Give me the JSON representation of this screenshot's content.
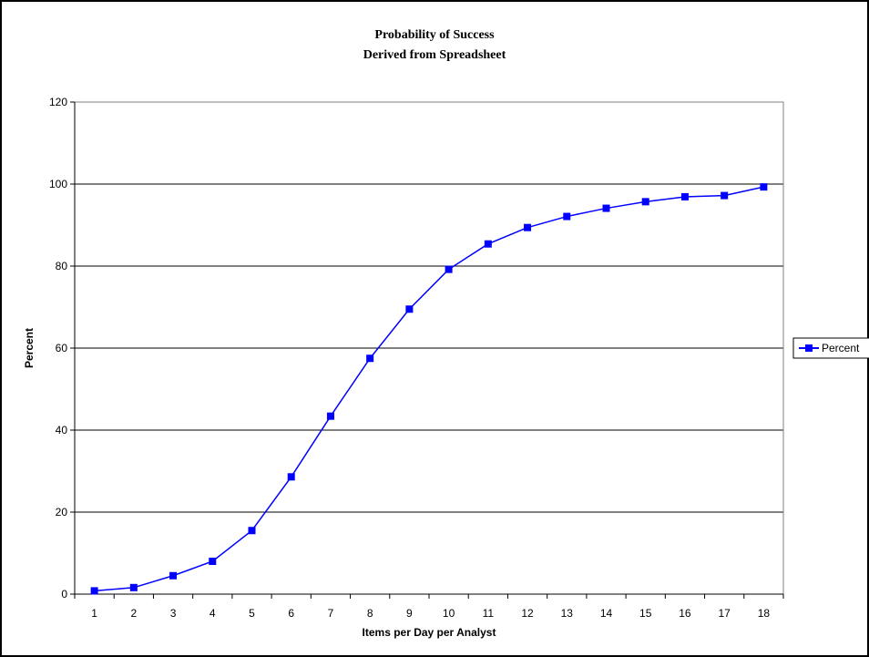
{
  "chart_data": {
    "type": "line",
    "title": "Probability of Success",
    "subtitle": "Derived from Spreadsheet",
    "xlabel": "Items per Day per Analyst",
    "ylabel": "Percent",
    "categories": [
      "1",
      "2",
      "3",
      "4",
      "5",
      "6",
      "7",
      "8",
      "9",
      "10",
      "11",
      "12",
      "13",
      "14",
      "15",
      "16",
      "17",
      "18"
    ],
    "series": [
      {
        "name": "Percent",
        "values": [
          0.8,
          1.6,
          4.5,
          8.0,
          15.5,
          28.6,
          43.4,
          57.5,
          69.5,
          79.2,
          85.4,
          89.4,
          92.1,
          94.1,
          95.7,
          96.9,
          97.2,
          99.3
        ]
      }
    ],
    "ylim": [
      0,
      120
    ],
    "yticks": [
      0,
      20,
      40,
      60,
      80,
      100,
      120
    ],
    "grid": "horizontal",
    "legend_position": "right",
    "colors": {
      "series": "#0000ff",
      "grid": "#000000"
    }
  }
}
